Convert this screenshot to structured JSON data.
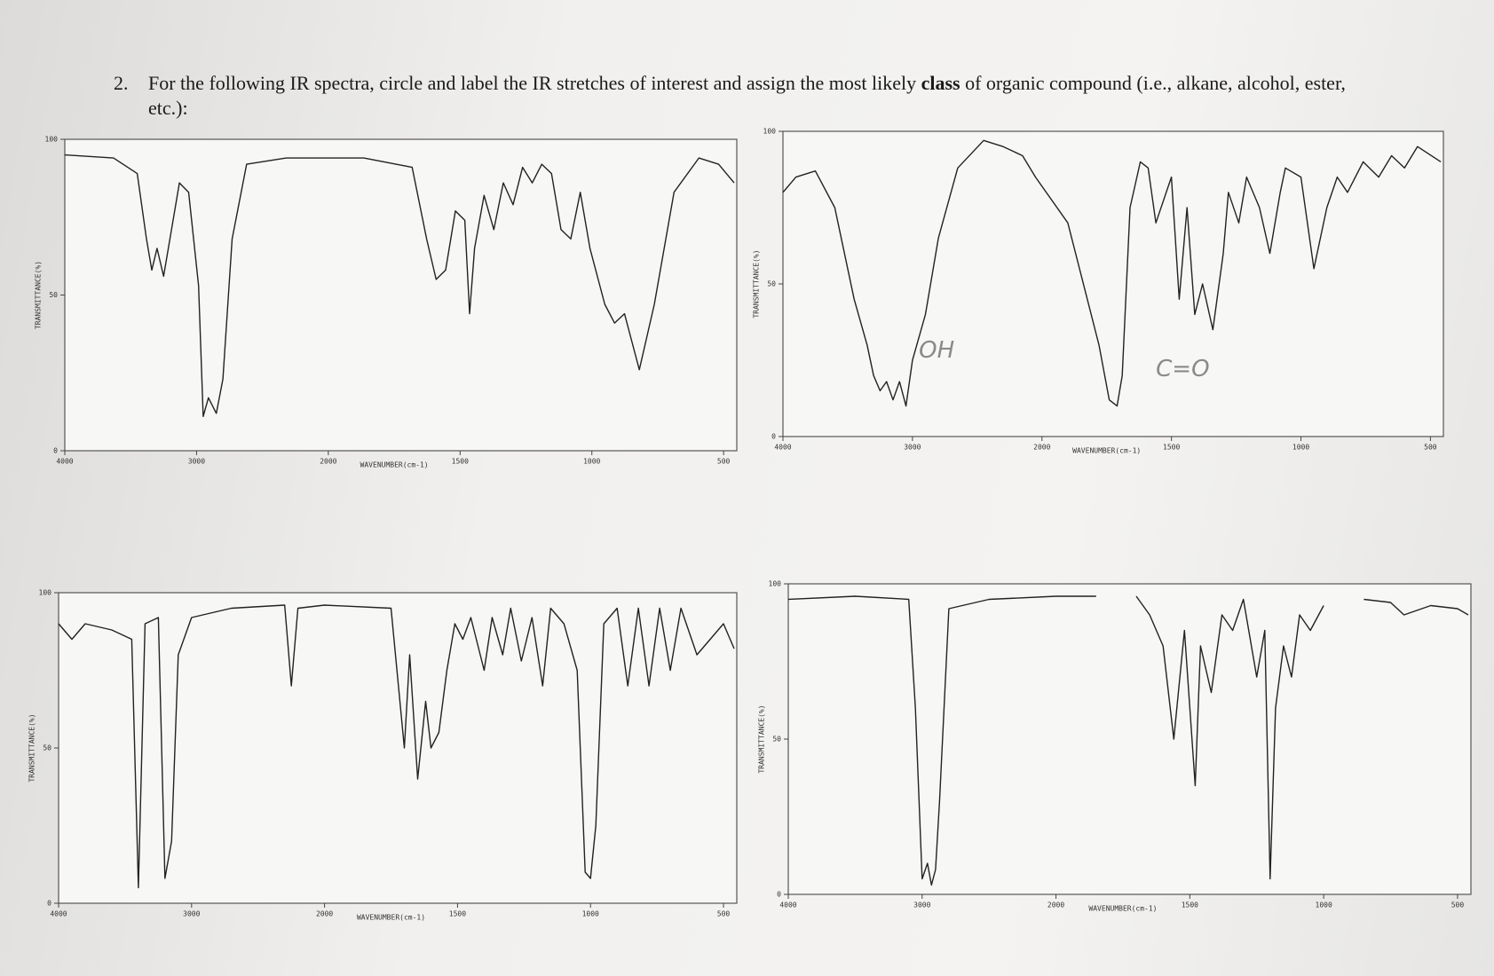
{
  "question": {
    "number": "2.",
    "text": [
      "For the following IR spectra, circle and label the IR stretches of interest and assign the most likely ",
      "class",
      " of organic compound (i.e., alkane, alcohol, ester, etc.):"
    ]
  },
  "chart_data": [
    {
      "type": "line",
      "xlabel": "WAVENUMBER(cm-1)",
      "ylabel": "TRANSMITTANCE(%)",
      "xlim": [
        4000,
        450
      ],
      "ylim": [
        0,
        100
      ],
      "xticks": [
        4000,
        3000,
        2000,
        1500,
        1000,
        500
      ],
      "yticks": [
        0,
        50,
        100
      ],
      "color": "#222222",
      "x": [
        4000,
        3630,
        3450,
        3380,
        3340,
        3300,
        3250,
        3190,
        3130,
        3060,
        2985,
        2950,
        2910,
        2850,
        2800,
        2730,
        2620,
        2320,
        1865,
        1682,
        1627,
        1591,
        1555,
        1518,
        1482,
        1464,
        1445,
        1409,
        1372,
        1336,
        1299,
        1263,
        1226,
        1190,
        1153,
        1117,
        1080,
        1044,
        1007,
        951,
        914,
        876,
        820,
        763,
        688,
        594,
        519,
        460
      ],
      "values": [
        95,
        94,
        89,
        68,
        58,
        65,
        56,
        71,
        86,
        83,
        53,
        11,
        17,
        12,
        23,
        68,
        92,
        94,
        94,
        91,
        68,
        55,
        58,
        77,
        74,
        44,
        65,
        82,
        71,
        86,
        79,
        91,
        86,
        92,
        89,
        71,
        68,
        83,
        65,
        47,
        41,
        44,
        26,
        47,
        83,
        94,
        92,
        86
      ]
    },
    {
      "type": "line",
      "xlabel": "WAVENUMBER(cm-1)",
      "ylabel": "TRANSMITTANCE(%)",
      "xlim": [
        4000,
        450
      ],
      "ylim": [
        0,
        100
      ],
      "xticks": [
        4000,
        3000,
        2000,
        1500,
        1000,
        500
      ],
      "yticks": [
        0,
        50,
        100
      ],
      "color": "#222222",
      "x": [
        4000,
        3900,
        3750,
        3600,
        3450,
        3350,
        3300,
        3250,
        3200,
        3150,
        3100,
        3050,
        3000,
        2900,
        2800,
        2650,
        2450,
        2300,
        2150,
        2050,
        1900,
        1780,
        1740,
        1710,
        1690,
        1660,
        1620,
        1590,
        1560,
        1500,
        1470,
        1440,
        1410,
        1380,
        1340,
        1300,
        1280,
        1240,
        1210,
        1160,
        1120,
        1080,
        1060,
        1000,
        950,
        900,
        860,
        820,
        760,
        700,
        650,
        600,
        550,
        460
      ],
      "values": [
        80,
        85,
        87,
        75,
        45,
        30,
        20,
        15,
        18,
        12,
        18,
        10,
        25,
        40,
        65,
        88,
        97,
        95,
        92,
        85,
        70,
        30,
        12,
        10,
        20,
        75,
        90,
        88,
        70,
        85,
        45,
        75,
        40,
        50,
        35,
        60,
        80,
        70,
        85,
        75,
        60,
        80,
        88,
        85,
        55,
        75,
        85,
        80,
        90,
        85,
        92,
        88,
        95,
        90
      ],
      "annotations": [
        {
          "text": "OH",
          "x": 2950,
          "y": 28
        },
        {
          "text": "C=O",
          "x": 1560,
          "y": 22
        }
      ]
    },
    {
      "type": "line",
      "xlabel": "WAVENUMBER(cm-1)",
      "ylabel": "TRANSMITTANCE(%)",
      "xlim": [
        4000,
        450
      ],
      "ylim": [
        0,
        100
      ],
      "xticks": [
        4000,
        3000,
        2000,
        1500,
        1000,
        500
      ],
      "yticks": [
        0,
        50,
        100
      ],
      "color": "#222222",
      "x": [
        4000,
        3900,
        3800,
        3600,
        3450,
        3400,
        3350,
        3250,
        3200,
        3150,
        3100,
        3000,
        2700,
        2300,
        2250,
        2200,
        2000,
        1750,
        1700,
        1680,
        1650,
        1620,
        1600,
        1570,
        1540,
        1510,
        1480,
        1450,
        1400,
        1370,
        1330,
        1300,
        1260,
        1220,
        1180,
        1150,
        1100,
        1050,
        1020,
        1000,
        980,
        950,
        900,
        860,
        820,
        780,
        740,
        700,
        660,
        600,
        500,
        460
      ],
      "values": [
        90,
        85,
        90,
        88,
        85,
        5,
        90,
        92,
        8,
        20,
        80,
        92,
        95,
        96,
        70,
        95,
        96,
        95,
        50,
        80,
        40,
        65,
        50,
        55,
        75,
        90,
        85,
        92,
        75,
        92,
        80,
        95,
        78,
        92,
        70,
        95,
        90,
        75,
        10,
        8,
        25,
        90,
        95,
        70,
        95,
        70,
        95,
        75,
        95,
        80,
        90,
        82
      ]
    },
    {
      "type": "line",
      "xlabel": "WAVENUMBER(cm-1)",
      "ylabel": "TRANSMITTANCE(%)",
      "xlim": [
        4000,
        450
      ],
      "ylim": [
        0,
        100
      ],
      "xticks": [
        4000,
        3000,
        2000,
        1500,
        1000,
        500
      ],
      "yticks": [
        0,
        50,
        100
      ],
      "color": "#222222",
      "x": [
        4000,
        3500,
        3100,
        3050,
        3000,
        2960,
        2930,
        2900,
        2870,
        2800,
        2500,
        2000,
        1850,
        1775,
        1700,
        1650,
        1600,
        1560,
        1520,
        1480,
        1460,
        1420,
        1380,
        1340,
        1300,
        1250,
        1220,
        1200,
        1180,
        1150,
        1120,
        1090,
        1050,
        1000,
        925,
        850,
        750,
        700,
        600,
        500,
        460
      ],
      "values": [
        95,
        96,
        95,
        60,
        5,
        10,
        3,
        8,
        30,
        92,
        95,
        96,
        96,
        null,
        96,
        90,
        80,
        50,
        85,
        35,
        80,
        65,
        90,
        85,
        95,
        70,
        85,
        5,
        60,
        80,
        70,
        90,
        85,
        93,
        null,
        95,
        94,
        90,
        93,
        92,
        90
      ]
    }
  ]
}
